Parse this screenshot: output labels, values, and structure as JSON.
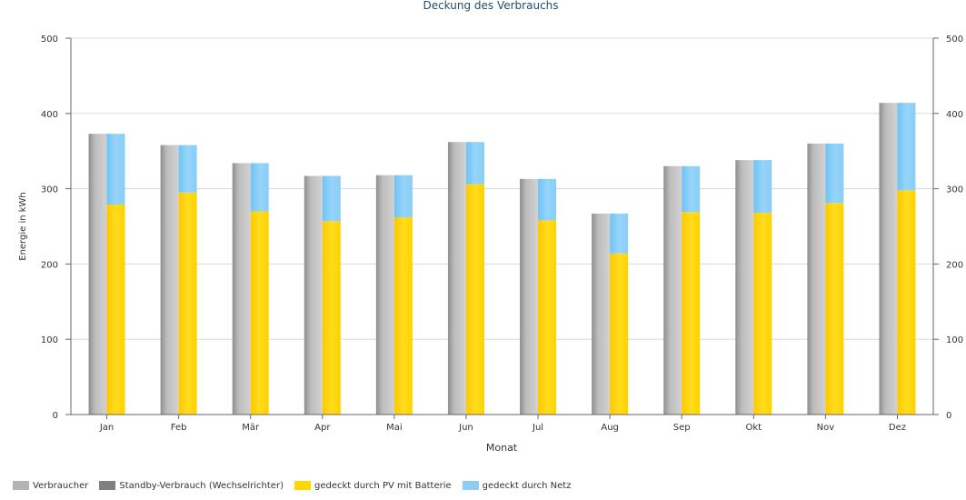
{
  "chart_data": {
    "type": "bar",
    "title": "Deckung des Verbrauchs",
    "xlabel": "Monat",
    "ylabel": "Energie in kWh",
    "ylim": [
      0,
      500
    ],
    "yticks": [
      0,
      100,
      200,
      300,
      400,
      500
    ],
    "grid": true,
    "legend_position": "bottom-left",
    "categories": [
      "Jan",
      "Feb",
      "Mär",
      "Apr",
      "Mai",
      "Jun",
      "Jul",
      "Aug",
      "Sep",
      "Okt",
      "Nov",
      "Dez"
    ],
    "series": [
      {
        "name": "Verbraucher",
        "stack": "verbrauch",
        "color": "#b4b4b4",
        "values": [
          373,
          358,
          334,
          317,
          318,
          362,
          313,
          267,
          330,
          338,
          360,
          414
        ]
      },
      {
        "name": "Standby-Verbrauch (Wechselrichter)",
        "stack": "verbrauch",
        "color": "#808080",
        "values": [
          0,
          0,
          0,
          0,
          0,
          0,
          0,
          0,
          0,
          0,
          0,
          0
        ]
      },
      {
        "name": "gedeckt durch PV mit Batterie",
        "stack": "deckung",
        "color": "#ffd700",
        "values": [
          279,
          295,
          270,
          257,
          262,
          306,
          258,
          214,
          269,
          268,
          281,
          298
        ]
      },
      {
        "name": "gedeckt durch Netz",
        "stack": "deckung",
        "color": "#8fcdf5",
        "values": [
          94,
          63,
          64,
          60,
          56,
          56,
          55,
          53,
          61,
          70,
          79,
          116
        ]
      }
    ]
  }
}
